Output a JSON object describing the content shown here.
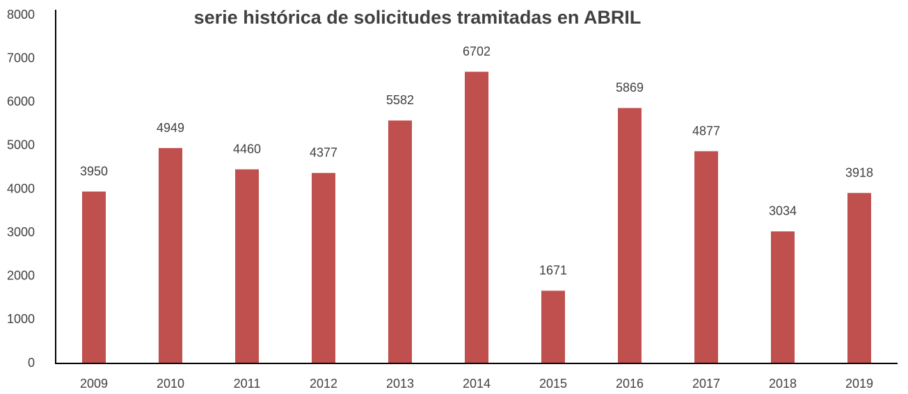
{
  "chart_data": {
    "type": "bar",
    "title": "serie histórica de solicitudes tramitadas en ABRIL",
    "categories": [
      "2009",
      "2010",
      "2011",
      "2012",
      "2013",
      "2014",
      "2015",
      "2016",
      "2017",
      "2018",
      "2019"
    ],
    "values": [
      3950,
      4949,
      4460,
      4377,
      5582,
      6702,
      1671,
      5869,
      4877,
      3034,
      3918
    ],
    "color": "#c0504d",
    "ylim": [
      0,
      8000
    ],
    "yticks": [
      0,
      1000,
      2000,
      3000,
      4000,
      5000,
      6000,
      7000,
      8000
    ],
    "grid": false
  }
}
